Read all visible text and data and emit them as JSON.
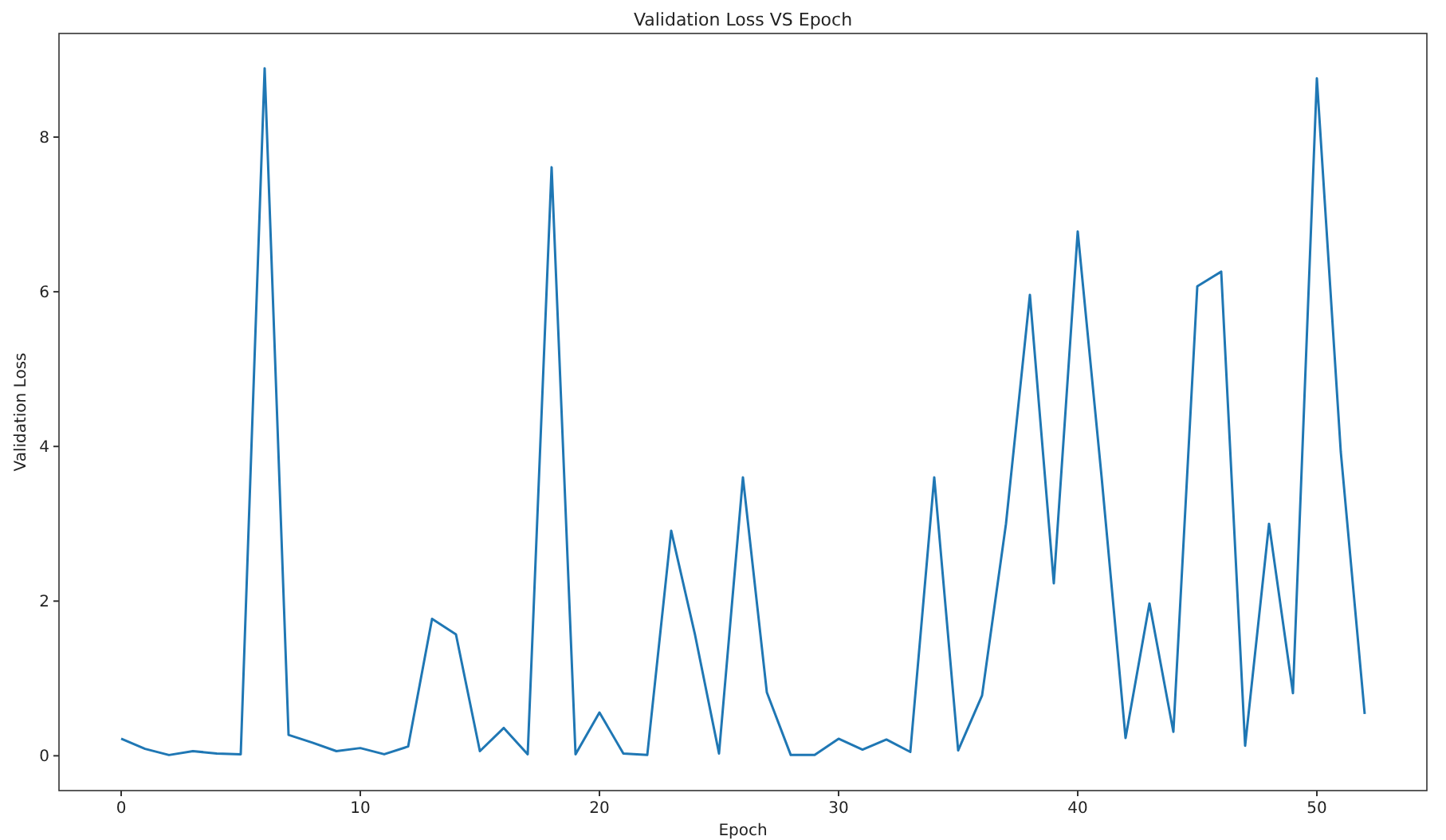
{
  "chart_data": {
    "type": "line",
    "title": "Validation Loss VS Epoch",
    "xlabel": "Epoch",
    "ylabel": "Validation Loss",
    "x": [
      0,
      1,
      2,
      3,
      4,
      5,
      6,
      7,
      8,
      9,
      10,
      11,
      12,
      13,
      14,
      15,
      16,
      17,
      18,
      19,
      20,
      21,
      22,
      23,
      24,
      25,
      26,
      27,
      28,
      29,
      30,
      31,
      32,
      33,
      34,
      35,
      36,
      37,
      38,
      39,
      40,
      41,
      42,
      43,
      44,
      45,
      46,
      47,
      48,
      49,
      50,
      51,
      52
    ],
    "series": [
      {
        "color": "#1f77b4",
        "values": [
          0.22,
          0.09,
          0.01,
          0.06,
          0.03,
          0.02,
          8.89,
          0.27,
          0.17,
          0.06,
          0.1,
          0.02,
          0.12,
          1.77,
          1.57,
          0.06,
          0.36,
          0.02,
          7.61,
          0.02,
          0.56,
          0.03,
          0.01,
          2.91,
          1.56,
          0.03,
          3.6,
          0.82,
          0.01,
          0.01,
          0.22,
          0.08,
          0.21,
          0.05,
          3.6,
          0.07,
          0.78,
          3.0,
          5.96,
          2.23,
          6.78,
          3.6,
          0.23,
          1.97,
          0.31,
          6.07,
          6.26,
          0.13,
          3.0,
          0.81,
          8.76,
          3.93,
          0.54
        ]
      }
    ],
    "xlim": [
      -2.6,
      54.6
    ],
    "ylim": [
      -0.45,
      9.34
    ],
    "xticks": [
      0,
      10,
      20,
      30,
      40,
      50
    ],
    "yticks": [
      0,
      2,
      4,
      6,
      8
    ]
  }
}
